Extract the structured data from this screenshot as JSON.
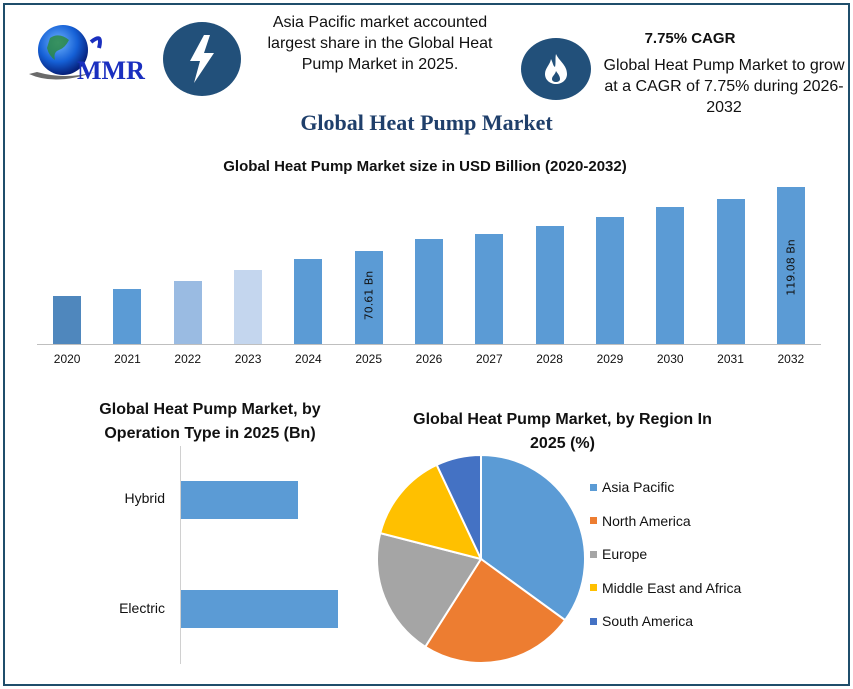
{
  "header": {
    "logo_text": "MMR",
    "callout_left": {
      "icon": "lightning-bolt-icon",
      "text": "Asia Pacific market accounted largest share in the Global Heat Pump Market in 2025."
    },
    "callout_right": {
      "icon": "flame-icon",
      "headline": "7.75% CAGR",
      "text": "Global Heat Pump Market to grow at a CAGR of 7.75% during 2026-2032"
    }
  },
  "main_title": "Global Heat Pump Market",
  "colors": {
    "border": "#1f4e6b",
    "icon_bg": "#22507a",
    "title": "#1f3f6b",
    "bar": "#5b9bd5"
  },
  "chart_data": [
    {
      "type": "bar",
      "title": "Global Heat Pump Market size in USD Billion (2020-2032)",
      "xlabel": "",
      "ylabel": "",
      "categories": [
        "2020",
        "2021",
        "2022",
        "2023",
        "2024",
        "2025",
        "2026",
        "2027",
        "2028",
        "2029",
        "2030",
        "2031",
        "2032"
      ],
      "values": [
        36.5,
        41.5,
        48,
        56,
        64.5,
        70.61,
        80,
        84,
        90,
        96.5,
        104,
        110.5,
        119.08
      ],
      "bar_colors": [
        "#4f87bd",
        "#5b9bd5",
        "#9abbe2",
        "#c4d6ee",
        "#5b9bd5",
        "#5b9bd5",
        "#5b9bd5",
        "#5b9bd5",
        "#5b9bd5",
        "#5b9bd5",
        "#5b9bd5",
        "#5b9bd5",
        "#5b9bd5"
      ],
      "data_labels": {
        "2025": "70.61 Bn",
        "2032": "119.08 Bn"
      },
      "grid": false,
      "ylim": [
        0,
        125
      ]
    },
    {
      "type": "bar",
      "orientation": "horizontal",
      "title": "Global Heat Pump Market, by Operation Type in 2025 (Bn)",
      "categories": [
        "Hybrid",
        "Electric"
      ],
      "values": [
        30,
        40
      ],
      "grid": false
    },
    {
      "type": "pie",
      "title": "Global Heat Pump Market, by Region In 2025 (%)",
      "categories": [
        "Asia Pacific",
        "North America",
        "Europe",
        "Middle East and Africa",
        "South America"
      ],
      "values": [
        35,
        24,
        20,
        14,
        7
      ],
      "colors": [
        "#5b9bd5",
        "#ed7d31",
        "#a5a5a5",
        "#ffc000",
        "#4472c4"
      ],
      "legend_position": "right"
    }
  ]
}
